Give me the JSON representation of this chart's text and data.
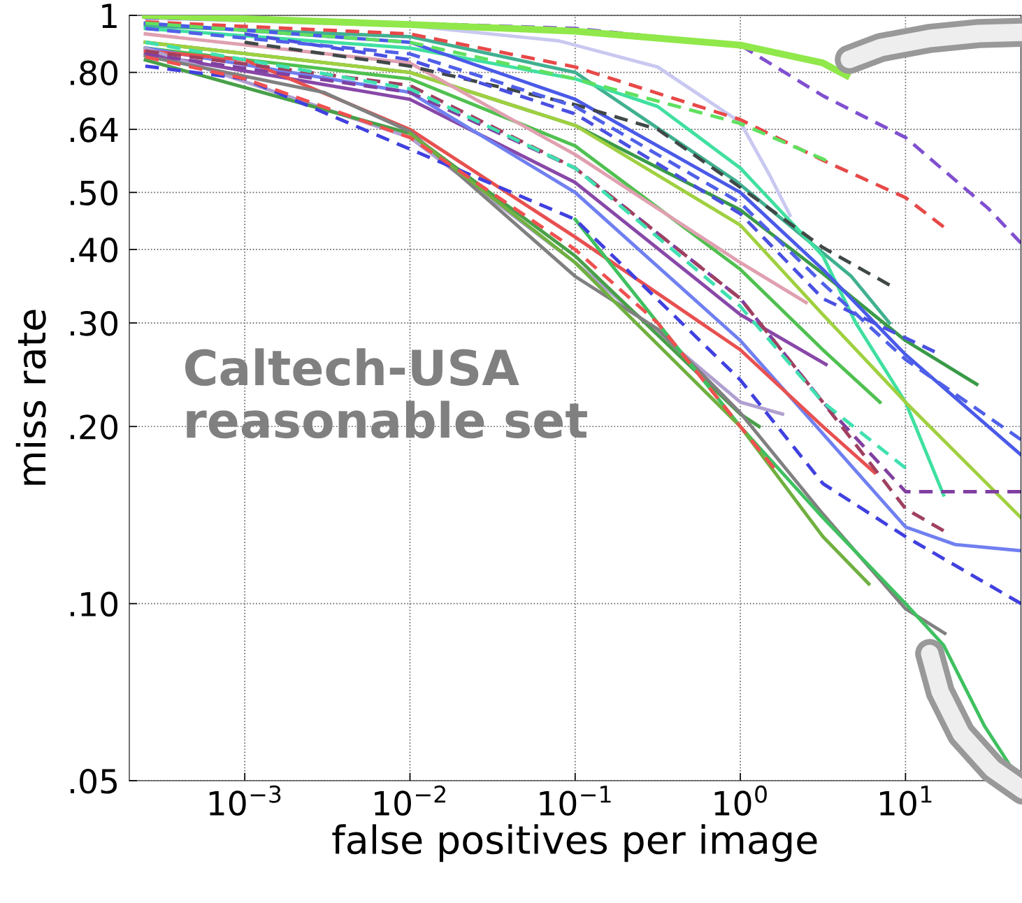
{
  "chart_data": {
    "type": "line",
    "xlabel": "false positives per image",
    "ylabel": "miss rate",
    "log": "xy",
    "grid": true,
    "legend": false,
    "marker": "none",
    "xlim": [
      0.0002,
      50
    ],
    "ylim": [
      0.05,
      1
    ],
    "xticks": [
      {
        "value": 0.001,
        "label": "10$^{−3}$"
      },
      {
        "value": 0.01,
        "label": "10$^{−2}$"
      },
      {
        "value": 0.1,
        "label": "10$^{−1}$"
      },
      {
        "value": 1,
        "label": "10$^{0}$"
      },
      {
        "value": 10,
        "label": "10$^{1}$"
      }
    ],
    "yticks": [
      {
        "value": 0.05,
        "label": ".05"
      },
      {
        "value": 0.1,
        "label": ".10"
      },
      {
        "value": 0.2,
        "label": ".20"
      },
      {
        "value": 0.3,
        "label": ".30"
      },
      {
        "value": 0.4,
        "label": ".40"
      },
      {
        "value": 0.5,
        "label": ".50"
      },
      {
        "value": 0.64,
        "label": ".64"
      },
      {
        "value": 0.8,
        "label": ".80"
      },
      {
        "value": 1,
        "label": "1"
      }
    ],
    "annotations": [
      "Caltech-USA\nreasonable set"
    ],
    "series": [
      {
        "color": "#90e84a",
        "line_style": "solid",
        "x": [
          0.00025,
          0.01,
          0.1,
          1,
          3.16,
          4.4
        ],
        "values": [
          1.0,
          0.965,
          0.94,
          0.89,
          0.83,
          0.79
        ]
      },
      {
        "color": "#8050d0",
        "line_style": "dashed",
        "x": [
          0.00025,
          0.01,
          0.1,
          1,
          3.16,
          10,
          31.6,
          50
        ],
        "values": [
          0.99,
          0.97,
          0.95,
          0.89,
          0.73,
          0.62,
          0.47,
          0.41
        ]
      },
      {
        "color": "#c8c8f0",
        "line_style": "solid",
        "x": [
          0.00025,
          0.01,
          0.08,
          0.316,
          1,
          1.5,
          2.0
        ],
        "values": [
          0.99,
          0.96,
          0.905,
          0.817,
          0.658,
          0.536,
          0.457
        ]
      },
      {
        "color": "#e84848",
        "line_style": "dashed",
        "x": [
          0.00025,
          0.01,
          0.1,
          1,
          3.16,
          10,
          17
        ],
        "values": [
          0.975,
          0.93,
          0.817,
          0.665,
          0.567,
          0.49,
          0.437
        ]
      },
      {
        "color": "#60e060",
        "line_style": "dashed",
        "x": [
          0.00025,
          0.01,
          0.1,
          1,
          3.3
        ],
        "values": [
          0.97,
          0.9,
          0.78,
          0.655,
          0.567
        ]
      },
      {
        "color": "#40b090",
        "line_style": "solid",
        "x": [
          0.00025,
          0.01,
          0.1,
          0.93,
          4.7,
          8
        ],
        "values": [
          0.96,
          0.92,
          0.8,
          0.524,
          0.36,
          0.3
        ]
      },
      {
        "color": "#40e0a0",
        "line_style": "solid",
        "x": [
          0.00025,
          0.01,
          0.1,
          0.316,
          1,
          3.16,
          5,
          10,
          17
        ],
        "values": [
          0.95,
          0.88,
          0.78,
          0.7,
          0.55,
          0.39,
          0.3,
          0.22,
          0.153
        ]
      },
      {
        "color": "#404848",
        "line_style": "dashed",
        "x": [
          0.001,
          0.01,
          0.1,
          0.316,
          1,
          3.16,
          8
        ],
        "values": [
          0.9,
          0.82,
          0.705,
          0.64,
          0.51,
          0.403,
          0.348
        ]
      },
      {
        "color": "#3a9a48",
        "line_style": "solid",
        "x": [
          0.00025,
          0.01,
          0.1,
          1,
          3.16,
          10,
          27
        ],
        "values": [
          0.9,
          0.8,
          0.65,
          0.467,
          0.364,
          0.28,
          0.236
        ]
      },
      {
        "color": "#4a5ae8",
        "line_style": "solid",
        "x": [
          0.00025,
          0.01,
          0.1,
          1,
          3.16,
          10,
          50
        ],
        "values": [
          0.97,
          0.9,
          0.72,
          0.5,
          0.37,
          0.265,
          0.179
        ]
      },
      {
        "color": "#4a50e0",
        "line_style": "dashed",
        "x": [
          0.001,
          0.01,
          0.1,
          1,
          3.16,
          15
        ],
        "values": [
          0.93,
          0.84,
          0.68,
          0.46,
          0.33,
          0.268
        ]
      },
      {
        "color": "#5060e8",
        "line_style": "dashed",
        "x": [
          0.00025,
          0.01,
          0.1,
          1,
          3.16,
          10,
          50
        ],
        "values": [
          0.95,
          0.86,
          0.7,
          0.48,
          0.35,
          0.26,
          0.19
        ]
      },
      {
        "color": "#a0d040",
        "line_style": "solid",
        "x": [
          0.00025,
          0.01,
          0.1,
          1,
          3.16,
          10,
          50
        ],
        "values": [
          0.9,
          0.8,
          0.65,
          0.44,
          0.31,
          0.22,
          0.14
        ]
      },
      {
        "color": "#50c050",
        "line_style": "solid",
        "x": [
          0.00025,
          0.01,
          0.1,
          1,
          3.16,
          7
        ],
        "values": [
          0.88,
          0.78,
          0.6,
          0.37,
          0.27,
          0.22
        ]
      },
      {
        "color": "#8040a0",
        "line_style": "dashed",
        "x": [
          0.00025,
          0.01,
          0.1,
          1,
          3.16,
          10,
          50
        ],
        "values": [
          0.86,
          0.74,
          0.55,
          0.33,
          0.22,
          0.155,
          0.155
        ]
      },
      {
        "color": "#e0a0b0",
        "line_style": "solid",
        "x": [
          0.00025,
          0.01,
          0.1,
          1,
          2.5
        ],
        "values": [
          0.93,
          0.83,
          0.58,
          0.38,
          0.325
        ]
      },
      {
        "color": "#a04060",
        "line_style": "dashed",
        "x": [
          0.00025,
          0.01,
          0.1,
          1,
          3.16,
          10,
          17
        ],
        "values": [
          0.87,
          0.76,
          0.55,
          0.33,
          0.22,
          0.145,
          0.133
        ]
      },
      {
        "color": "#8848a8",
        "line_style": "solid",
        "x": [
          0.00025,
          0.01,
          0.1,
          1,
          3.3
        ],
        "values": [
          0.86,
          0.72,
          0.52,
          0.31,
          0.255
        ]
      },
      {
        "color": "#7080f0",
        "line_style": "solid",
        "x": [
          0.00025,
          0.01,
          0.1,
          1,
          10,
          20,
          50
        ],
        "values": [
          0.88,
          0.74,
          0.5,
          0.28,
          0.135,
          0.126,
          0.123
        ]
      },
      {
        "color": "#4040e0",
        "line_style": "dashed",
        "x": [
          0.00025,
          0.001,
          0.1,
          1,
          3.16,
          10,
          50
        ],
        "values": [
          0.82,
          0.78,
          0.45,
          0.24,
          0.16,
          0.13,
          0.1
        ]
      },
      {
        "color": "#e85050",
        "line_style": "solid",
        "x": [
          0.00025,
          0.001,
          0.01,
          0.1,
          1,
          3.16,
          6.5
        ],
        "values": [
          0.87,
          0.84,
          0.64,
          0.42,
          0.27,
          0.2,
          0.167
        ]
      },
      {
        "color": "#f05050",
        "line_style": "dashed",
        "x": [
          0.00025,
          0.001,
          0.01,
          0.1,
          0.316,
          1,
          1.6
        ],
        "values": [
          0.85,
          0.78,
          0.62,
          0.4,
          0.3,
          0.2,
          0.17
        ]
      },
      {
        "color": "#b0a0d0",
        "line_style": "solid",
        "x": [
          0.00025,
          0.01,
          0.1,
          1,
          1.8
        ],
        "values": [
          0.88,
          0.62,
          0.38,
          0.22,
          0.21
        ]
      },
      {
        "color": "#48a048",
        "line_style": "solid",
        "x": [
          0.00025,
          0.01,
          0.1,
          1,
          1.3
        ],
        "values": [
          0.84,
          0.63,
          0.39,
          0.21,
          0.2
        ]
      },
      {
        "color": "#40e0b0",
        "line_style": "dashed",
        "x": [
          0.00025,
          0.01,
          0.1,
          1,
          3.16,
          10
        ],
        "values": [
          0.9,
          0.75,
          0.55,
          0.32,
          0.22,
          0.17
        ]
      },
      {
        "color": "#808080",
        "line_style": "solid",
        "x": [
          0.00025,
          0.003,
          0.01,
          0.1,
          0.316,
          1,
          3.16,
          10,
          17.3
        ],
        "values": [
          0.853,
          0.74,
          0.635,
          0.36,
          0.293,
          0.211,
          0.142,
          0.098,
          0.089
        ]
      },
      {
        "color": "#40c060",
        "line_style": "solid",
        "x": [
          0.1,
          1,
          3.16,
          10,
          17,
          30,
          45
        ],
        "values": [
          0.45,
          0.2,
          0.14,
          0.1,
          0.085,
          0.062,
          0.052
        ]
      },
      {
        "color": "#70b040",
        "line_style": "solid",
        "x": [
          0.01,
          0.1,
          1,
          3.16,
          6
        ],
        "values": [
          0.63,
          0.38,
          0.2,
          0.13,
          0.108
        ]
      }
    ]
  }
}
